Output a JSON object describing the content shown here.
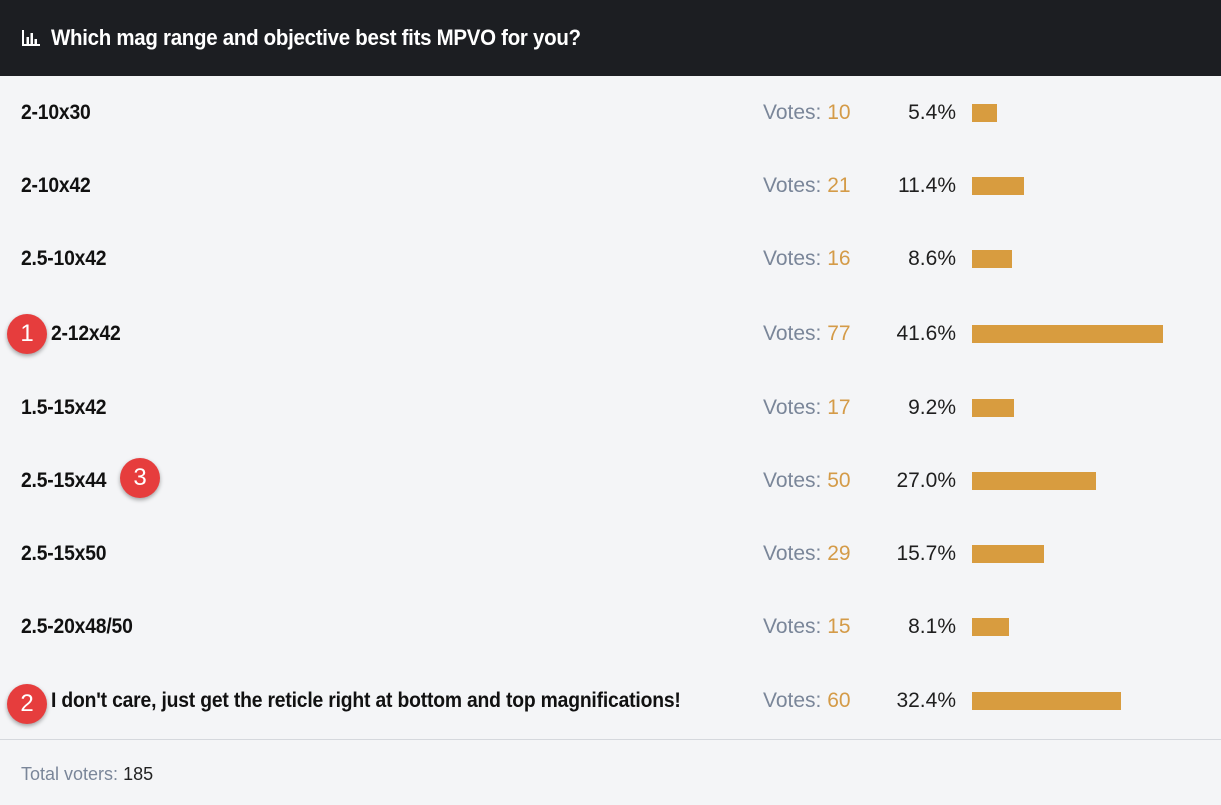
{
  "poll": {
    "title": "Which mag range and objective best fits MPVO for you?",
    "icon": "bar-chart-icon",
    "votes_label": "Votes:",
    "options": [
      {
        "label": "2-10x30",
        "votes": "10",
        "percent": "5.4%",
        "fraction": 0.054
      },
      {
        "label": "2-10x42",
        "votes": "21",
        "percent": "11.4%",
        "fraction": 0.114
      },
      {
        "label": "2.5-10x42",
        "votes": "16",
        "percent": "8.6%",
        "fraction": 0.086
      },
      {
        "label": "2-12x42",
        "votes": "77",
        "percent": "41.6%",
        "fraction": 0.416
      },
      {
        "label": "1.5-15x42",
        "votes": "17",
        "percent": "9.2%",
        "fraction": 0.092
      },
      {
        "label": "2.5-15x44",
        "votes": "50",
        "percent": "27.0%",
        "fraction": 0.27
      },
      {
        "label": "2.5-15x50",
        "votes": "29",
        "percent": "15.7%",
        "fraction": 0.157
      },
      {
        "label": "2.5-20x48/50",
        "votes": "15",
        "percent": "8.1%",
        "fraction": 0.081
      },
      {
        "label": "I don't care, just get the reticle right at bottom and top magnifications!",
        "votes": "60",
        "percent": "32.4%",
        "fraction": 0.324
      }
    ],
    "footer": {
      "label": "Total voters:",
      "total": "185"
    }
  },
  "annotations": {
    "badge_1": "1",
    "badge_2": "2",
    "badge_3": "3"
  },
  "colors": {
    "header_bg": "#1c1e22",
    "bar": "#d89c3f",
    "vote_count": "#d49b48",
    "badge": "#e63d3d"
  }
}
